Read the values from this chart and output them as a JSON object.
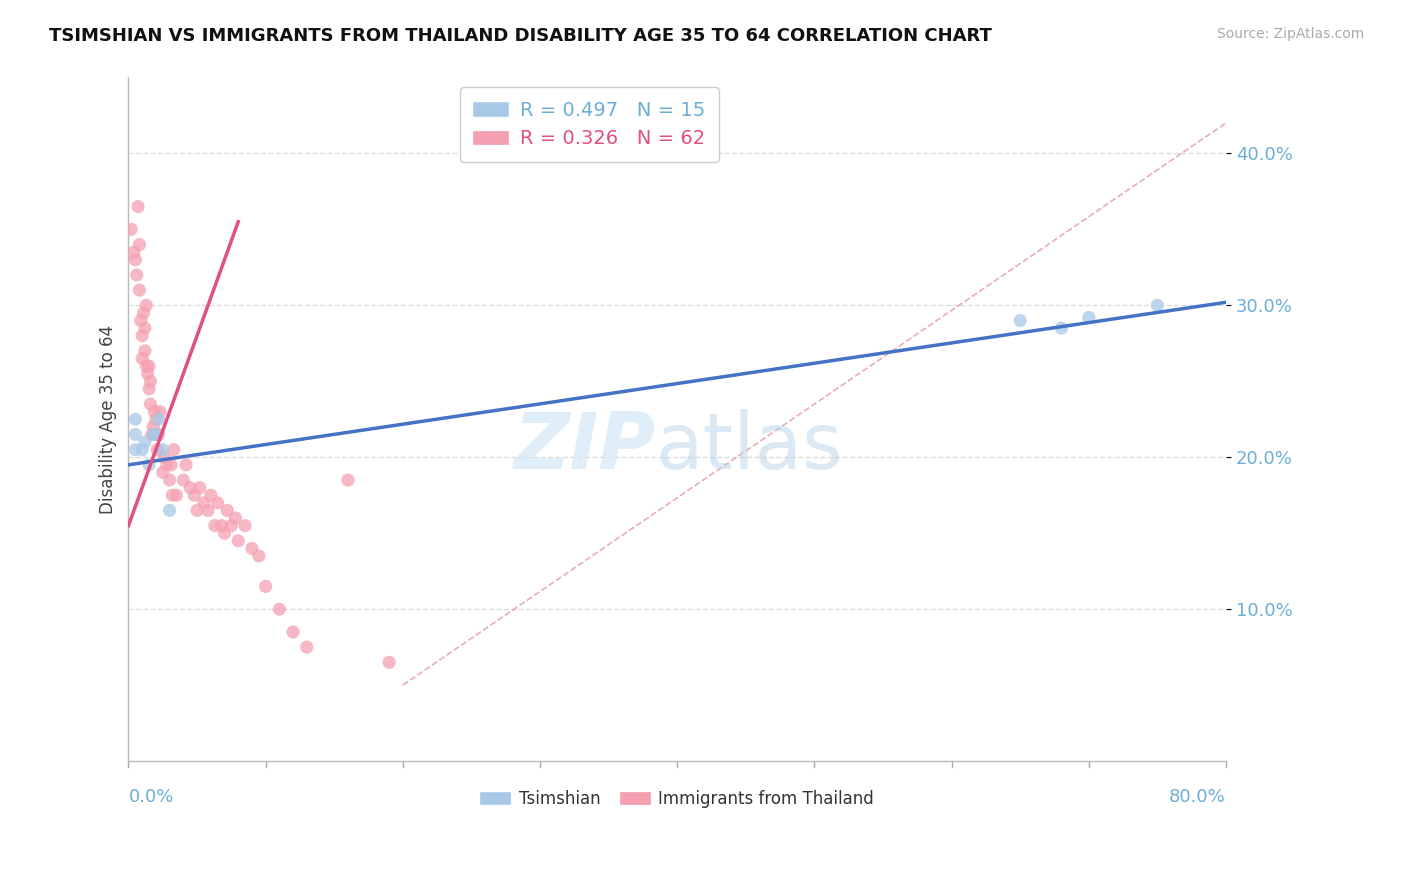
{
  "title": "TSIMSHIAN VS IMMIGRANTS FROM THAILAND DISABILITY AGE 35 TO 64 CORRELATION CHART",
  "source_text": "Source: ZipAtlas.com",
  "ylabel": "Disability Age 35 to 64",
  "xlim": [
    0.0,
    0.8
  ],
  "ylim": [
    0.0,
    0.45
  ],
  "ytick_vals": [
    0.1,
    0.2,
    0.3,
    0.4
  ],
  "ytick_labels": [
    "10.0%",
    "20.0%",
    "30.0%",
    "40.0%"
  ],
  "legend1_r": "R = 0.497",
  "legend1_n": "N = 15",
  "legend2_r": "R = 0.326",
  "legend2_n": "N = 62",
  "blue_scatter_color": "#a8c8e8",
  "pink_scatter_color": "#f4a0b0",
  "blue_line_color": "#4472c4",
  "pink_line_color": "#e05080",
  "diag_line_color": "#e08898",
  "grid_color": "#cccccc",
  "axis_color": "#6baed6",
  "tsimshian_x": [
    0.005,
    0.005,
    0.005,
    0.01,
    0.012,
    0.015,
    0.018,
    0.02,
    0.022,
    0.025,
    0.03,
    0.65,
    0.68,
    0.7,
    0.75
  ],
  "tsimshian_y": [
    0.205,
    0.215,
    0.225,
    0.205,
    0.21,
    0.195,
    0.215,
    0.215,
    0.225,
    0.205,
    0.165,
    0.29,
    0.285,
    0.292,
    0.3
  ],
  "thailand_x": [
    0.002,
    0.004,
    0.005,
    0.006,
    0.007,
    0.008,
    0.008,
    0.009,
    0.01,
    0.01,
    0.011,
    0.012,
    0.012,
    0.013,
    0.013,
    0.014,
    0.015,
    0.015,
    0.016,
    0.016,
    0.017,
    0.018,
    0.019,
    0.02,
    0.02,
    0.021,
    0.022,
    0.023,
    0.025,
    0.026,
    0.028,
    0.03,
    0.031,
    0.032,
    0.033,
    0.035,
    0.04,
    0.042,
    0.045,
    0.048,
    0.05,
    0.052,
    0.055,
    0.058,
    0.06,
    0.063,
    0.065,
    0.068,
    0.07,
    0.072,
    0.075,
    0.078,
    0.08,
    0.085,
    0.09,
    0.095,
    0.1,
    0.11,
    0.12,
    0.13,
    0.16,
    0.19
  ],
  "thailand_y": [
    0.35,
    0.335,
    0.33,
    0.32,
    0.365,
    0.34,
    0.31,
    0.29,
    0.28,
    0.265,
    0.295,
    0.27,
    0.285,
    0.3,
    0.26,
    0.255,
    0.245,
    0.26,
    0.25,
    0.235,
    0.215,
    0.22,
    0.23,
    0.215,
    0.225,
    0.205,
    0.215,
    0.23,
    0.19,
    0.2,
    0.195,
    0.185,
    0.195,
    0.175,
    0.205,
    0.175,
    0.185,
    0.195,
    0.18,
    0.175,
    0.165,
    0.18,
    0.17,
    0.165,
    0.175,
    0.155,
    0.17,
    0.155,
    0.15,
    0.165,
    0.155,
    0.16,
    0.145,
    0.155,
    0.14,
    0.135,
    0.115,
    0.1,
    0.085,
    0.075,
    0.185,
    0.065
  ],
  "blue_line_x": [
    0.0,
    0.8
  ],
  "blue_line_y": [
    0.195,
    0.302
  ],
  "pink_line_x": [
    0.0,
    0.08
  ],
  "pink_line_y": [
    0.155,
    0.355
  ],
  "diag_line_x": [
    0.2,
    0.8
  ],
  "diag_line_y": [
    0.05,
    0.42
  ]
}
